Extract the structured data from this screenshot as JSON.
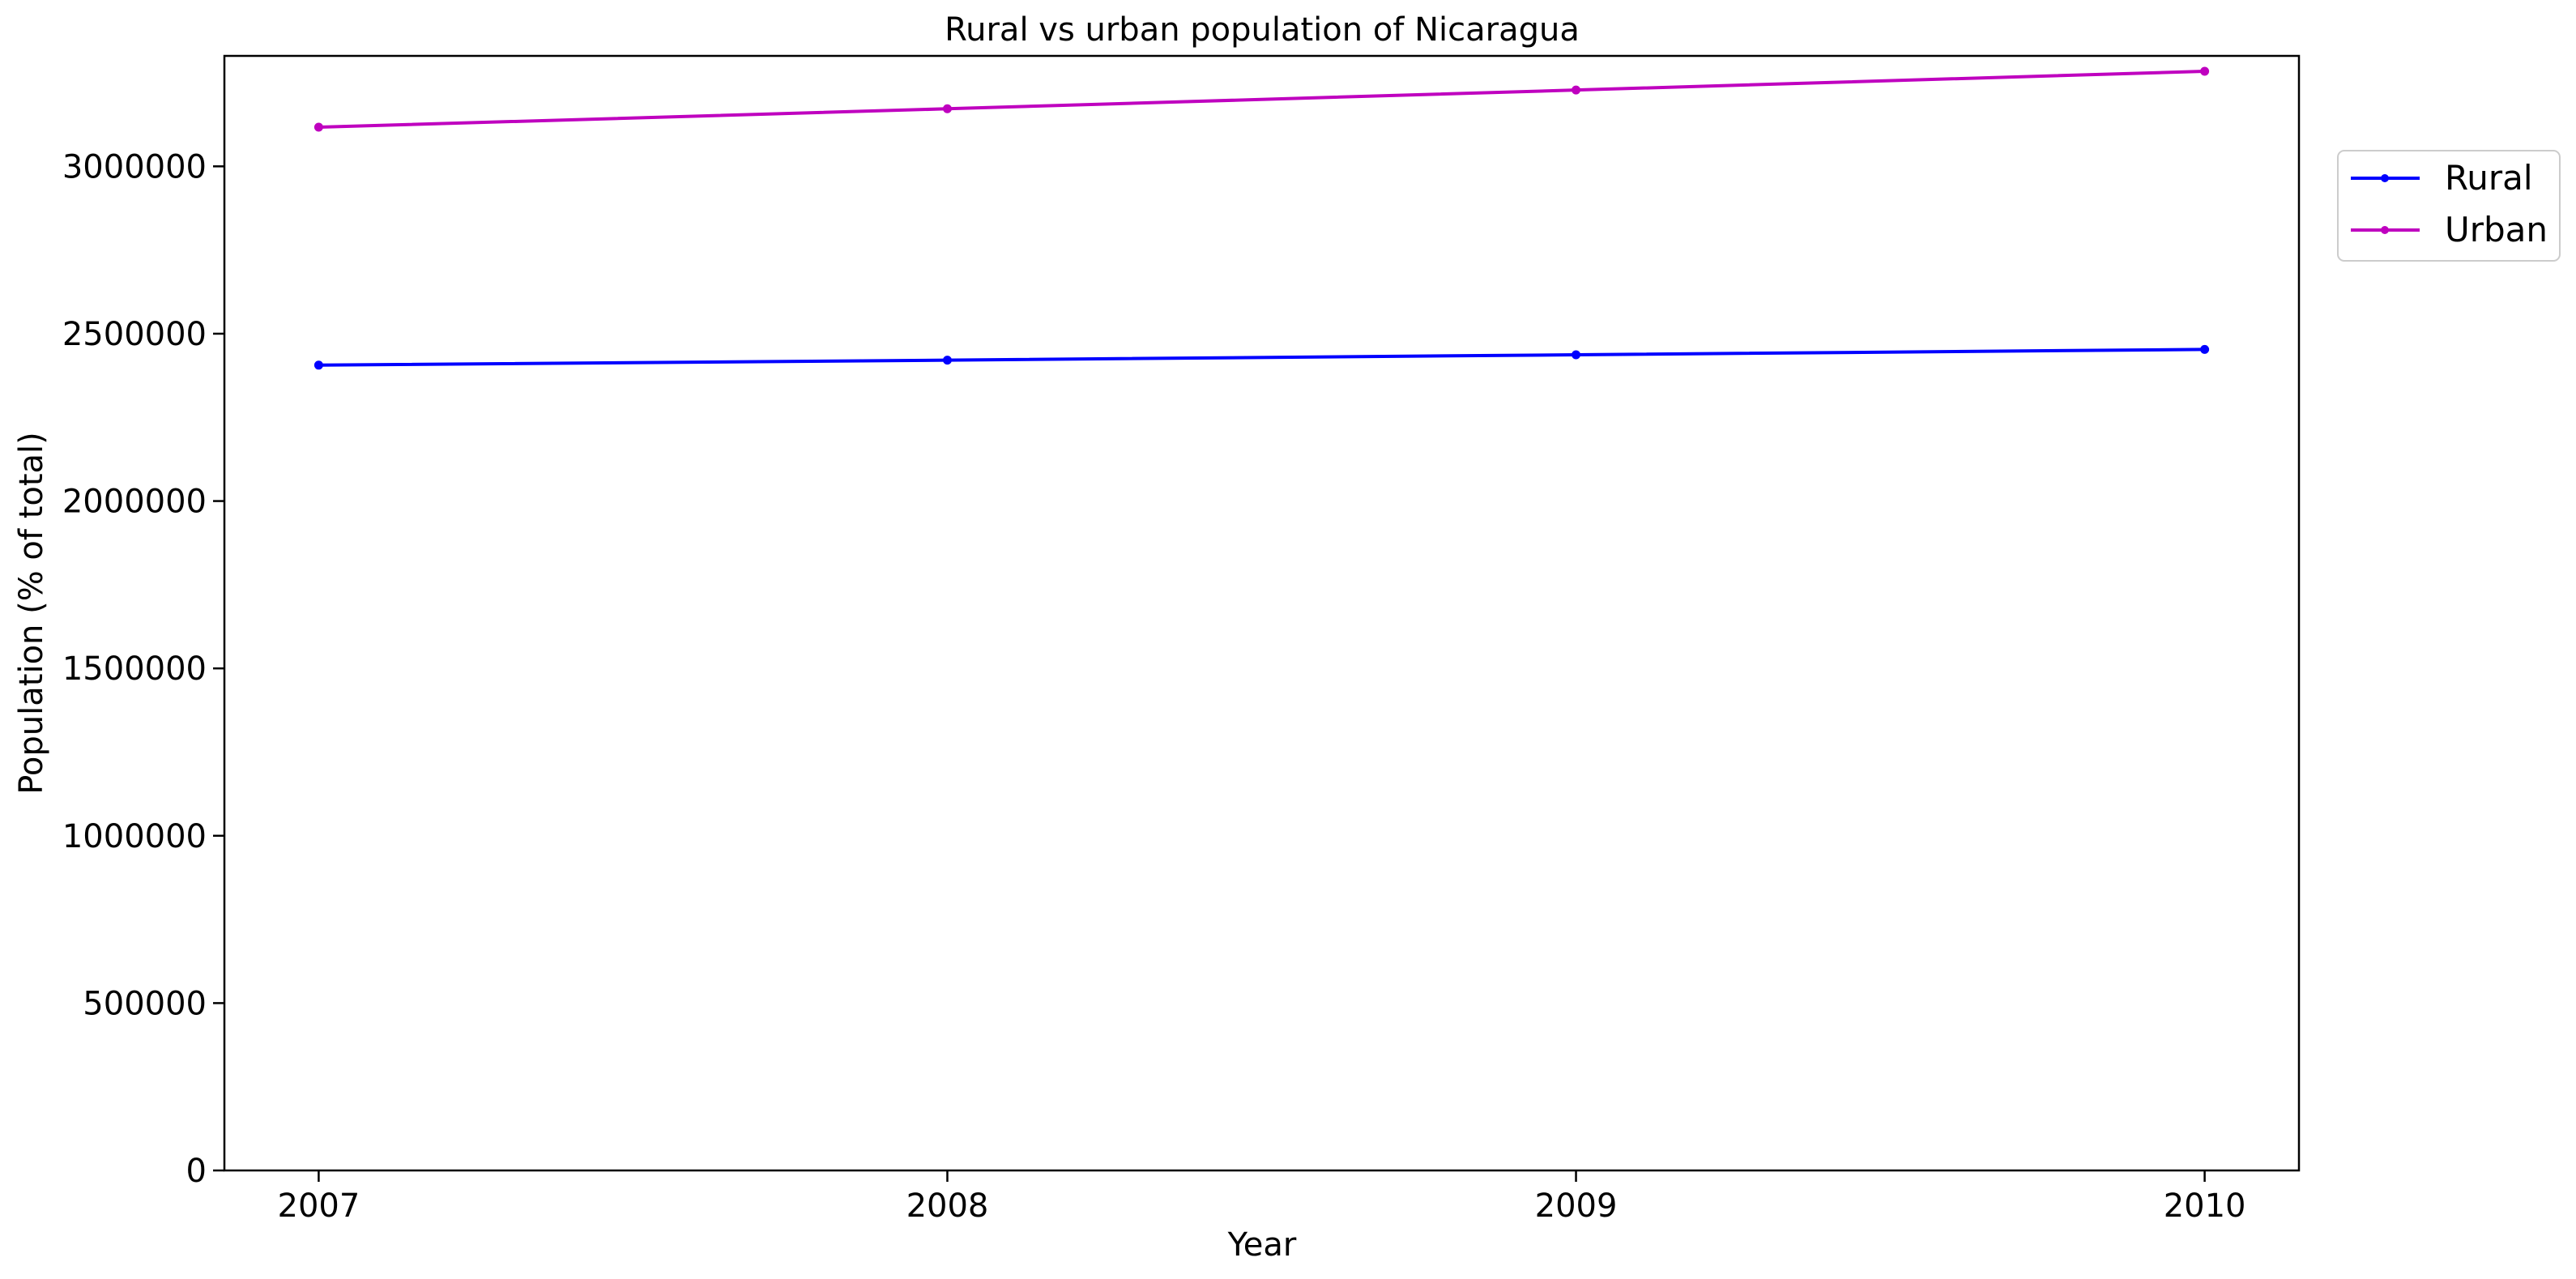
{
  "chart_data": {
    "type": "line",
    "title": "Rural vs urban population of Nicaragua",
    "xlabel": "Year",
    "ylabel": "Population (% of total)",
    "x": [
      2007,
      2008,
      2009,
      2010
    ],
    "x_tick_labels": [
      "2007",
      "2008",
      "2009",
      "2010"
    ],
    "y_ticks": [
      0,
      500000,
      1000000,
      1500000,
      2000000,
      2500000,
      3000000
    ],
    "y_tick_labels": [
      "0",
      "500000",
      "1000000",
      "1500000",
      "2000000",
      "2500000",
      "3000000"
    ],
    "ylim": [
      0,
      3330000
    ],
    "xlim": [
      2006.85,
      2010.15
    ],
    "grid": false,
    "legend_position": "upper right, outside plot",
    "series": [
      {
        "name": "Rural",
        "color": "#0000ff",
        "marker": "dot",
        "values": [
          2406000,
          2421000,
          2437000,
          2453000
        ]
      },
      {
        "name": "Urban",
        "color": "#bf00bf",
        "marker": "dot",
        "values": [
          3117000,
          3172000,
          3228000,
          3284000
        ]
      }
    ]
  }
}
